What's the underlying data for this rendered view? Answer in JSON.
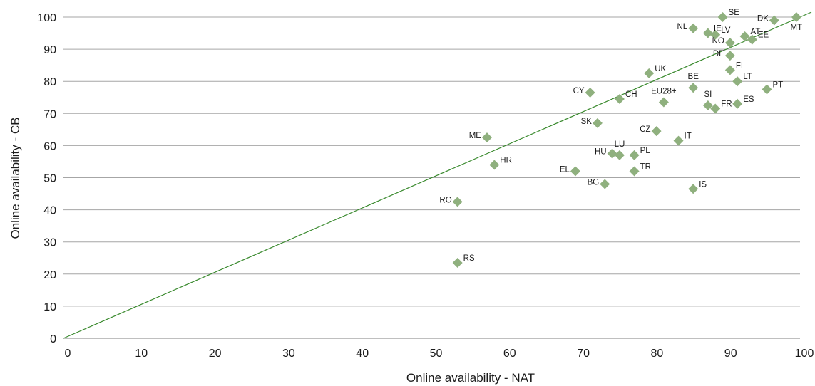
{
  "chart_data": {
    "type": "scatter",
    "xlabel": "Online availability - NAT",
    "ylabel": "Online availability - CB",
    "xlim": [
      0,
      100
    ],
    "ylim": [
      0,
      100
    ],
    "xticks": [
      "0",
      "10",
      "20",
      "30",
      "40",
      "50",
      "60",
      "70",
      "80",
      "90",
      "100"
    ],
    "yticks": [
      "0",
      "10",
      "20",
      "30",
      "40",
      "50",
      "60",
      "70",
      "80",
      "90",
      "100"
    ],
    "grid": "horizontal",
    "marker_color": "#8fb07e",
    "line_color": "#3a8a2e",
    "reference_line": {
      "from": [
        0,
        0
      ],
      "to": [
        100,
        100
      ]
    },
    "points": [
      {
        "label": "SE",
        "x": 89.5,
        "y": 100,
        "pos": "right"
      },
      {
        "label": "DK",
        "x": 96.5,
        "y": 99,
        "pos": "left"
      },
      {
        "label": "MT",
        "x": 99.5,
        "y": 100,
        "pos": "below"
      },
      {
        "label": "NL",
        "x": 85.5,
        "y": 96.5,
        "pos": "left"
      },
      {
        "label": "IE",
        "x": 87.5,
        "y": 95,
        "pos": "right"
      },
      {
        "label": "LV",
        "x": 88.5,
        "y": 94.5,
        "pos": "right"
      },
      {
        "label": "AT",
        "x": 92.5,
        "y": 94,
        "pos": "right"
      },
      {
        "label": "EE",
        "x": 93.5,
        "y": 93,
        "pos": "right"
      },
      {
        "label": "NO",
        "x": 90.5,
        "y": 92,
        "pos": "left"
      },
      {
        "label": "DE",
        "x": 90.5,
        "y": 88,
        "pos": "left"
      },
      {
        "label": "FI",
        "x": 90.5,
        "y": 83.5,
        "pos": "right"
      },
      {
        "label": "UK",
        "x": 79.5,
        "y": 82.5,
        "pos": "right"
      },
      {
        "label": "LT",
        "x": 91.5,
        "y": 80,
        "pos": "right"
      },
      {
        "label": "BE",
        "x": 85.5,
        "y": 78,
        "pos": "above"
      },
      {
        "label": "PT",
        "x": 95.5,
        "y": 77.5,
        "pos": "right"
      },
      {
        "label": "CY",
        "x": 71.5,
        "y": 76.5,
        "pos": "left"
      },
      {
        "label": "CH",
        "x": 75.5,
        "y": 74.5,
        "pos": "right"
      },
      {
        "label": "EU28+",
        "x": 81.5,
        "y": 73.5,
        "pos": "above"
      },
      {
        "label": "SI",
        "x": 87.5,
        "y": 72.5,
        "pos": "above"
      },
      {
        "label": "FR",
        "x": 88.5,
        "y": 71.5,
        "pos": "right"
      },
      {
        "label": "ES",
        "x": 91.5,
        "y": 73,
        "pos": "right"
      },
      {
        "label": "SK",
        "x": 72.5,
        "y": 67,
        "pos": "left"
      },
      {
        "label": "CZ",
        "x": 80.5,
        "y": 64.5,
        "pos": "left"
      },
      {
        "label": "ME",
        "x": 57.5,
        "y": 62.5,
        "pos": "left"
      },
      {
        "label": "IT",
        "x": 83.5,
        "y": 61.5,
        "pos": "right"
      },
      {
        "label": "LU",
        "x": 75.5,
        "y": 57,
        "pos": "above"
      },
      {
        "label": "HU",
        "x": 74.5,
        "y": 57.5,
        "pos": "left"
      },
      {
        "label": "PL",
        "x": 77.5,
        "y": 57,
        "pos": "right"
      },
      {
        "label": "HR",
        "x": 58.5,
        "y": 54,
        "pos": "right"
      },
      {
        "label": "EL",
        "x": 69.5,
        "y": 52,
        "pos": "left"
      },
      {
        "label": "TR",
        "x": 77.5,
        "y": 52,
        "pos": "right"
      },
      {
        "label": "BG",
        "x": 73.5,
        "y": 48,
        "pos": "left"
      },
      {
        "label": "IS",
        "x": 85.5,
        "y": 46.5,
        "pos": "right"
      },
      {
        "label": "RO",
        "x": 53.5,
        "y": 42.5,
        "pos": "left"
      },
      {
        "label": "RS",
        "x": 53.5,
        "y": 23.5,
        "pos": "right"
      }
    ]
  }
}
